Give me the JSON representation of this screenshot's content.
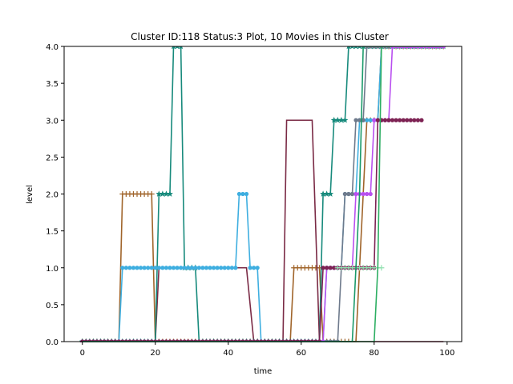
{
  "chart_data": {
    "type": "line",
    "title": "Cluster ID:118 Status:3 Plot, 10 Movies in this Cluster",
    "xlabel": "time",
    "ylabel": "level",
    "xlim": [
      -5,
      104
    ],
    "ylim": [
      0,
      4
    ],
    "xticks": [
      0,
      20,
      40,
      60,
      80,
      100
    ],
    "yticks": [
      0.0,
      0.5,
      1.0,
      1.5,
      2.0,
      2.5,
      3.0,
      3.5,
      4.0
    ],
    "xtick_labels": [
      "0",
      "20",
      "40",
      "60",
      "80",
      "100"
    ],
    "ytick_labels": [
      "0.0",
      "0.5",
      "1.0",
      "1.5",
      "2.0",
      "2.5",
      "3.0",
      "3.5",
      "4.0"
    ],
    "grid": false,
    "legend": "none",
    "series": [
      {
        "color": "#a0642a",
        "marker": "plus",
        "points": [
          [
            0,
            0
          ],
          [
            10,
            0
          ],
          [
            11,
            2
          ],
          [
            19,
            2
          ],
          [
            20,
            0
          ],
          [
            57,
            0
          ],
          [
            58,
            1
          ],
          [
            65,
            1
          ],
          [
            66,
            0
          ],
          [
            75,
            0
          ],
          [
            77,
            2
          ],
          [
            78,
            3
          ],
          [
            81,
            3
          ],
          [
            82,
            4
          ],
          [
            99,
            4
          ]
        ]
      },
      {
        "color": "#7a2a45",
        "marker": "none",
        "points": [
          [
            0,
            0
          ],
          [
            20,
            0
          ],
          [
            21,
            1
          ],
          [
            45,
            1
          ],
          [
            47,
            0
          ],
          [
            55,
            0
          ],
          [
            56,
            3
          ],
          [
            63,
            3
          ],
          [
            65,
            0
          ],
          [
            99,
            0
          ]
        ]
      },
      {
        "color": "#178a7c",
        "marker": "star",
        "points": [
          [
            0,
            0
          ],
          [
            20,
            0
          ],
          [
            21,
            2
          ],
          [
            24,
            2
          ],
          [
            25,
            4
          ],
          [
            27,
            4
          ],
          [
            28,
            1
          ],
          [
            31,
            1
          ],
          [
            32,
            0
          ],
          [
            65,
            0
          ],
          [
            66,
            2
          ],
          [
            68,
            2
          ],
          [
            69,
            3
          ],
          [
            72,
            3
          ],
          [
            73,
            4
          ],
          [
            99,
            4
          ]
        ]
      },
      {
        "color": "#3eaee0",
        "marker": "dot",
        "points": [
          [
            0,
            0
          ],
          [
            10,
            0
          ],
          [
            11,
            1
          ],
          [
            42,
            1
          ],
          [
            43,
            2
          ],
          [
            45,
            2
          ],
          [
            46,
            1
          ],
          [
            48,
            1
          ],
          [
            49,
            0
          ],
          [
            66,
            0
          ],
          [
            67,
            1
          ],
          [
            71,
            1
          ],
          [
            72,
            2
          ],
          [
            75,
            2
          ],
          [
            76,
            3
          ],
          [
            81,
            3
          ],
          [
            82,
            4
          ],
          [
            99,
            4
          ]
        ]
      },
      {
        "color": "#6e7a8c",
        "marker": "dot",
        "points": [
          [
            0,
            0
          ],
          [
            70,
            0
          ],
          [
            72,
            2
          ],
          [
            74,
            2
          ],
          [
            75,
            3
          ],
          [
            77,
            3
          ],
          [
            78,
            4
          ],
          [
            99,
            4
          ]
        ]
      },
      {
        "color": "#b94ff0",
        "marker": "dot",
        "points": [
          [
            0,
            0
          ],
          [
            66,
            0
          ],
          [
            67,
            1
          ],
          [
            74,
            1
          ],
          [
            75,
            2
          ],
          [
            79,
            2
          ],
          [
            80,
            3
          ],
          [
            84,
            3
          ],
          [
            85,
            4
          ],
          [
            99,
            4
          ]
        ]
      },
      {
        "color": "#7d2253",
        "marker": "dot",
        "points": [
          [
            0,
            0
          ],
          [
            65,
            0
          ],
          [
            66,
            1
          ],
          [
            80,
            1
          ],
          [
            81,
            3
          ],
          [
            93,
            3
          ]
        ]
      },
      {
        "color": "#90e0b0",
        "marker": "plus",
        "points": [
          [
            70,
            1
          ],
          [
            82,
            1
          ]
        ]
      },
      {
        "color": "#2cae62",
        "marker": "none",
        "points": [
          [
            0,
            0
          ],
          [
            80,
            0
          ],
          [
            81,
            1
          ],
          [
            82,
            4
          ],
          [
            99,
            4
          ]
        ]
      },
      {
        "color": "#1a9a6a",
        "marker": "none",
        "points": [
          [
            0,
            0
          ],
          [
            74,
            0
          ],
          [
            75,
            1
          ],
          [
            76,
            2
          ],
          [
            77,
            4
          ],
          [
            85,
            4
          ]
        ]
      }
    ]
  }
}
